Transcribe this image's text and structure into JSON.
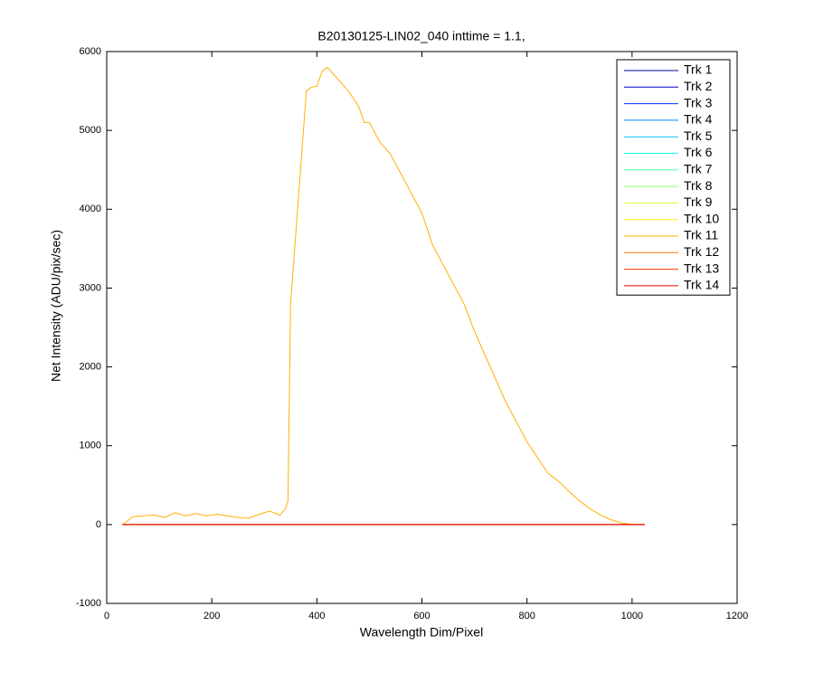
{
  "chart_data": {
    "type": "line",
    "title": "B20130125-LIN02_040 inttime = 1.1,",
    "x_label": "Wavelength Dim/Pixel",
    "y_label": "Net Intensity (ADU/pix/sec)",
    "xlim": [
      0,
      1200
    ],
    "xticks": [
      0,
      200,
      400,
      600,
      800,
      1000,
      1200
    ],
    "ylim": [
      -1000,
      6000
    ],
    "yticks": [
      -1000,
      0,
      1000,
      2000,
      3000,
      4000,
      5000,
      6000
    ],
    "legend": "upper right",
    "x": [
      30,
      50,
      70,
      90,
      110,
      130,
      150,
      170,
      190,
      210,
      230,
      250,
      270,
      290,
      310,
      330,
      340,
      345,
      350,
      360,
      370,
      380,
      390,
      400,
      410,
      420,
      440,
      460,
      480,
      490,
      500,
      520,
      540,
      560,
      580,
      600,
      620,
      640,
      660,
      680,
      700,
      720,
      740,
      760,
      780,
      800,
      820,
      840,
      860,
      880,
      900,
      920,
      940,
      960,
      980,
      1000,
      1024
    ],
    "series": [
      {
        "name": "Trk 1",
        "color": "#000090",
        "values": [
          0,
          0,
          0,
          0,
          0,
          0,
          0,
          0,
          0,
          0,
          0,
          0,
          0,
          0,
          0,
          0,
          0,
          0,
          0,
          0,
          0,
          0,
          0,
          0,
          0,
          0,
          0,
          0,
          0,
          0,
          0,
          0,
          0,
          0,
          0,
          0,
          0,
          0,
          0,
          0,
          0,
          0,
          0,
          0,
          0,
          0,
          0,
          0,
          0,
          0,
          0,
          0,
          0,
          0,
          0,
          0,
          0
        ]
      },
      {
        "name": "Trk 2",
        "color": "#0000d0",
        "values": [
          0,
          0,
          0,
          0,
          0,
          0,
          0,
          0,
          0,
          0,
          0,
          0,
          0,
          0,
          0,
          0,
          0,
          0,
          0,
          0,
          0,
          0,
          0,
          0,
          0,
          0,
          0,
          0,
          0,
          0,
          0,
          0,
          0,
          0,
          0,
          0,
          0,
          0,
          0,
          0,
          0,
          0,
          0,
          0,
          0,
          0,
          0,
          0,
          0,
          0,
          0,
          0,
          0,
          0,
          0,
          0,
          0
        ]
      },
      {
        "name": "Trk 3",
        "color": "#0030ff",
        "values": [
          0,
          0,
          0,
          0,
          0,
          0,
          0,
          0,
          0,
          0,
          0,
          0,
          0,
          0,
          0,
          0,
          0,
          0,
          0,
          0,
          0,
          0,
          0,
          0,
          0,
          0,
          0,
          0,
          0,
          0,
          0,
          0,
          0,
          0,
          0,
          0,
          0,
          0,
          0,
          0,
          0,
          0,
          0,
          0,
          0,
          0,
          0,
          0,
          0,
          0,
          0,
          0,
          0,
          0,
          0,
          0,
          0
        ]
      },
      {
        "name": "Trk 4",
        "color": "#0080ff",
        "values": [
          0,
          0,
          0,
          0,
          0,
          0,
          0,
          0,
          0,
          0,
          0,
          0,
          0,
          0,
          0,
          0,
          0,
          0,
          0,
          0,
          0,
          0,
          0,
          0,
          0,
          0,
          0,
          0,
          0,
          0,
          0,
          0,
          0,
          0,
          0,
          0,
          0,
          0,
          0,
          0,
          0,
          0,
          0,
          0,
          0,
          0,
          0,
          0,
          0,
          0,
          0,
          0,
          0,
          0,
          0,
          0,
          0
        ]
      },
      {
        "name": "Trk 5",
        "color": "#00c8ff",
        "values": [
          0,
          0,
          0,
          0,
          0,
          0,
          0,
          0,
          0,
          0,
          0,
          0,
          0,
          0,
          0,
          0,
          0,
          0,
          0,
          0,
          0,
          0,
          0,
          0,
          0,
          0,
          0,
          0,
          0,
          0,
          0,
          0,
          0,
          0,
          0,
          0,
          0,
          0,
          0,
          0,
          0,
          0,
          0,
          0,
          0,
          0,
          0,
          0,
          0,
          0,
          0,
          0,
          0,
          0,
          0,
          0,
          0
        ]
      },
      {
        "name": "Trk 6",
        "color": "#10ffef",
        "values": [
          0,
          0,
          0,
          0,
          0,
          0,
          0,
          0,
          0,
          0,
          0,
          0,
          0,
          0,
          0,
          0,
          0,
          0,
          0,
          0,
          0,
          0,
          0,
          0,
          0,
          0,
          0,
          0,
          0,
          0,
          0,
          0,
          0,
          0,
          0,
          0,
          0,
          0,
          0,
          0,
          0,
          0,
          0,
          0,
          0,
          0,
          0,
          0,
          0,
          0,
          0,
          0,
          0,
          0,
          0,
          0,
          0
        ]
      },
      {
        "name": "Trk 7",
        "color": "#50ffaf",
        "values": [
          0,
          0,
          0,
          0,
          0,
          0,
          0,
          0,
          0,
          0,
          0,
          0,
          0,
          0,
          0,
          0,
          0,
          0,
          0,
          0,
          0,
          0,
          0,
          0,
          0,
          0,
          0,
          0,
          0,
          0,
          0,
          0,
          0,
          0,
          0,
          0,
          0,
          0,
          0,
          0,
          0,
          0,
          0,
          0,
          0,
          0,
          0,
          0,
          0,
          0,
          0,
          0,
          0,
          0,
          0,
          0,
          0
        ]
      },
      {
        "name": "Trk 8",
        "color": "#90ff6f",
        "values": [
          0,
          0,
          0,
          0,
          0,
          0,
          0,
          0,
          0,
          0,
          0,
          0,
          0,
          0,
          0,
          0,
          0,
          0,
          0,
          0,
          0,
          0,
          0,
          0,
          0,
          0,
          0,
          0,
          0,
          0,
          0,
          0,
          0,
          0,
          0,
          0,
          0,
          0,
          0,
          0,
          0,
          0,
          0,
          0,
          0,
          0,
          0,
          0,
          0,
          0,
          0,
          0,
          0,
          0,
          0,
          0,
          0
        ]
      },
      {
        "name": "Trk 9",
        "color": "#cfff30",
        "values": [
          0,
          0,
          0,
          0,
          0,
          0,
          0,
          0,
          0,
          0,
          0,
          0,
          0,
          0,
          0,
          0,
          0,
          0,
          0,
          0,
          0,
          0,
          0,
          0,
          0,
          0,
          0,
          0,
          0,
          0,
          0,
          0,
          0,
          0,
          0,
          0,
          0,
          0,
          0,
          0,
          0,
          0,
          0,
          0,
          0,
          0,
          0,
          0,
          0,
          0,
          0,
          0,
          0,
          0,
          0,
          0,
          0
        ]
      },
      {
        "name": "Trk 10",
        "color": "#ffef00",
        "values": [
          0,
          0,
          0,
          0,
          0,
          0,
          0,
          0,
          0,
          0,
          0,
          0,
          0,
          0,
          0,
          0,
          0,
          0,
          0,
          0,
          0,
          0,
          0,
          0,
          0,
          0,
          0,
          0,
          0,
          0,
          0,
          0,
          0,
          0,
          0,
          0,
          0,
          0,
          0,
          0,
          0,
          0,
          0,
          0,
          0,
          0,
          0,
          0,
          0,
          0,
          0,
          0,
          0,
          0,
          0,
          0,
          0
        ]
      },
      {
        "name": "Trk 11",
        "color": "#ffb000",
        "values": [
          0,
          100,
          110,
          120,
          90,
          150,
          110,
          140,
          110,
          130,
          110,
          90,
          80,
          130,
          170,
          120,
          200,
          300,
          2800,
          3700,
          4600,
          5500,
          5550,
          5560,
          5750,
          5800,
          5650,
          5500,
          5300,
          5100,
          5100,
          4850,
          4700,
          4450,
          4200,
          3950,
          3550,
          3300,
          3050,
          2800,
          2450,
          2150,
          1850,
          1550,
          1300,
          1050,
          850,
          650,
          550,
          420,
          300,
          200,
          120,
          60,
          20,
          5,
          0
        ]
      },
      {
        "name": "Trk 12",
        "color": "#ff7000",
        "values": [
          0,
          0,
          0,
          0,
          0,
          0,
          0,
          0,
          0,
          0,
          0,
          0,
          0,
          0,
          0,
          0,
          0,
          0,
          0,
          0,
          0,
          0,
          0,
          0,
          0,
          0,
          0,
          0,
          0,
          0,
          0,
          0,
          0,
          0,
          0,
          0,
          0,
          0,
          0,
          0,
          0,
          0,
          0,
          0,
          0,
          0,
          0,
          0,
          0,
          0,
          0,
          0,
          0,
          0,
          0,
          0,
          0
        ]
      },
      {
        "name": "Trk 13",
        "color": "#ff3000",
        "values": [
          0,
          0,
          0,
          0,
          0,
          0,
          0,
          0,
          0,
          0,
          0,
          0,
          0,
          0,
          0,
          0,
          0,
          0,
          0,
          0,
          0,
          0,
          0,
          0,
          0,
          0,
          0,
          0,
          0,
          0,
          0,
          0,
          0,
          0,
          0,
          0,
          0,
          0,
          0,
          0,
          0,
          0,
          0,
          0,
          0,
          0,
          0,
          0,
          0,
          0,
          0,
          0,
          0,
          0,
          0,
          0,
          0
        ]
      },
      {
        "name": "Trk 14",
        "color": "#ef0000",
        "values": [
          0,
          0,
          0,
          0,
          0,
          0,
          0,
          0,
          0,
          0,
          0,
          0,
          0,
          0,
          0,
          0,
          0,
          0,
          0,
          0,
          0,
          0,
          0,
          0,
          0,
          0,
          0,
          0,
          0,
          0,
          0,
          0,
          0,
          0,
          0,
          0,
          0,
          0,
          0,
          0,
          0,
          0,
          0,
          0,
          0,
          0,
          0,
          0,
          0,
          0,
          0,
          0,
          0,
          0,
          0,
          0,
          0
        ]
      }
    ]
  }
}
